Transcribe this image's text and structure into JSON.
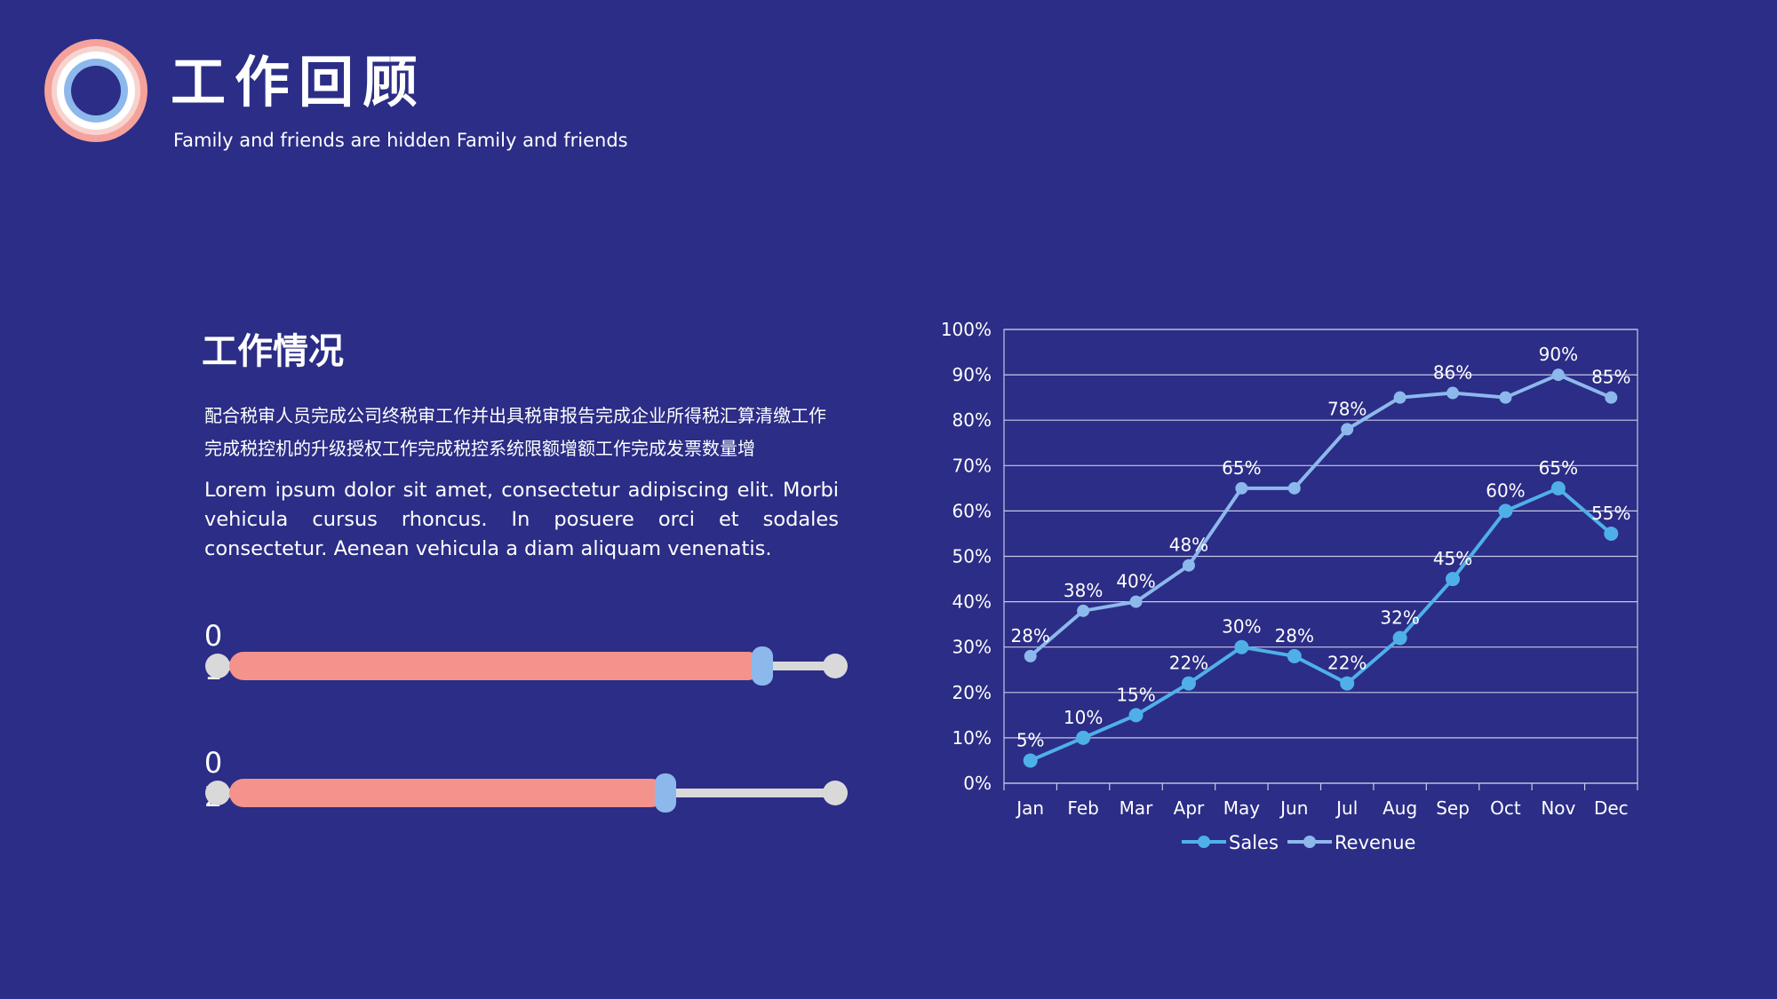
{
  "header": {
    "title": "工作回顾",
    "subtitle": "Family and friends are hidden Family and friends"
  },
  "section": {
    "title": "工作情况",
    "text_cn_line1": "配合税审人员完成公司终税审工作并出具税审报告完成企业所得税汇算清缴工作",
    "text_cn_line2": "完成税控机的升级授权工作完成税控系统限额增额工作完成发票数量增",
    "text_en": "Lorem ipsum dolor sit amet, consectetur adipiscing elit. Morbi vehicula cursus rhoncus. In posuere orci et sodales consectetur. Aenean vehicula a diam aliquam venenatis."
  },
  "progress": [
    {
      "num_top": "0",
      "num_bottom": "1",
      "value": 0.88
    },
    {
      "num_top": "0",
      "num_bottom": "2",
      "value": 0.72
    }
  ],
  "colors": {
    "background": "#2b2d86",
    "sales": "#4fb0e8",
    "revenue": "#8db8ec",
    "bar_fill": "#f4938c",
    "track": "#d9d9d9"
  },
  "chart_data": {
    "type": "line",
    "categories": [
      "Jan",
      "Feb",
      "Mar",
      "Apr",
      "May",
      "Jun",
      "Jul",
      "Aug",
      "Sep",
      "Oct",
      "Nov",
      "Dec"
    ],
    "series": [
      {
        "name": "Sales",
        "values": [
          5,
          10,
          15,
          22,
          30,
          28,
          22,
          32,
          45,
          60,
          65,
          55
        ],
        "labels": [
          "5%",
          "10%",
          "15%",
          "22%",
          "30%",
          "28%",
          "22%",
          "32%",
          "45%",
          "60%",
          "65%",
          "55%"
        ]
      },
      {
        "name": "Revenue",
        "values": [
          28,
          38,
          40,
          48,
          65,
          65,
          78,
          85,
          86,
          85,
          90,
          85
        ],
        "labels": [
          "28%",
          "38%",
          "40%",
          "48%",
          "65%",
          "",
          "78%",
          "",
          "86%",
          "",
          "90%",
          "85%"
        ]
      }
    ],
    "y_ticks": [
      "0%",
      "10%",
      "20%",
      "30%",
      "40%",
      "50%",
      "60%",
      "70%",
      "80%",
      "90%",
      "100%"
    ],
    "ylim": [
      0,
      100
    ],
    "grid": true,
    "legend_position": "bottom"
  }
}
